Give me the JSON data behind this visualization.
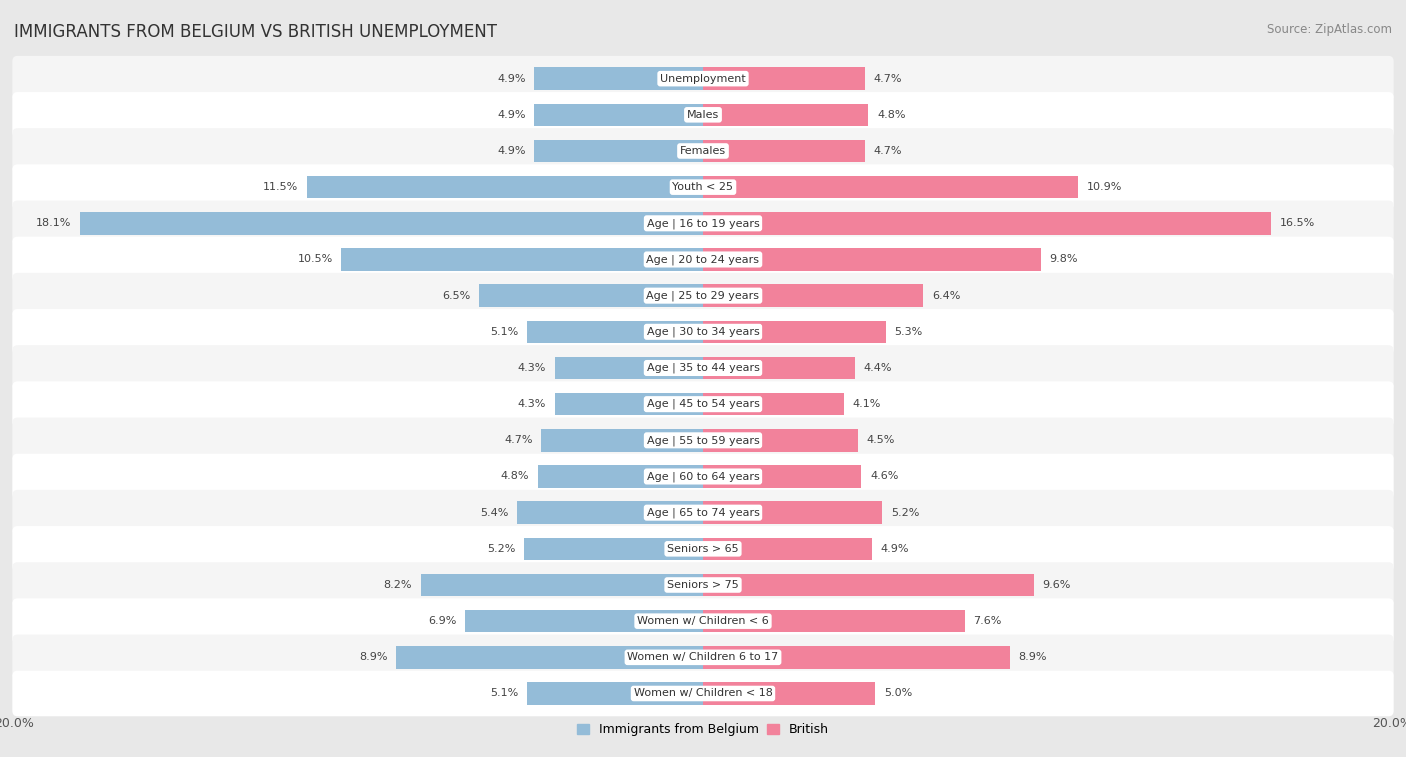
{
  "title": "IMMIGRANTS FROM BELGIUM VS BRITISH UNEMPLOYMENT",
  "source": "Source: ZipAtlas.com",
  "categories": [
    "Unemployment",
    "Males",
    "Females",
    "Youth < 25",
    "Age | 16 to 19 years",
    "Age | 20 to 24 years",
    "Age | 25 to 29 years",
    "Age | 30 to 34 years",
    "Age | 35 to 44 years",
    "Age | 45 to 54 years",
    "Age | 55 to 59 years",
    "Age | 60 to 64 years",
    "Age | 65 to 74 years",
    "Seniors > 65",
    "Seniors > 75",
    "Women w/ Children < 6",
    "Women w/ Children 6 to 17",
    "Women w/ Children < 18"
  ],
  "belgium_values": [
    4.9,
    4.9,
    4.9,
    11.5,
    18.1,
    10.5,
    6.5,
    5.1,
    4.3,
    4.3,
    4.7,
    4.8,
    5.4,
    5.2,
    8.2,
    6.9,
    8.9,
    5.1
  ],
  "british_values": [
    4.7,
    4.8,
    4.7,
    10.9,
    16.5,
    9.8,
    6.4,
    5.3,
    4.4,
    4.1,
    4.5,
    4.6,
    5.2,
    4.9,
    9.6,
    7.6,
    8.9,
    5.0
  ],
  "belgium_color": "#94bcd8",
  "british_color": "#f2829b",
  "bg_color": "#e8e8e8",
  "row_even_color": "#f5f5f5",
  "row_odd_color": "#ffffff",
  "axis_max": 20.0,
  "bar_height": 0.62,
  "legend_belgium": "Immigrants from Belgium",
  "legend_british": "British",
  "title_fontsize": 12,
  "source_fontsize": 8.5,
  "label_fontsize": 8,
  "category_fontsize": 8
}
